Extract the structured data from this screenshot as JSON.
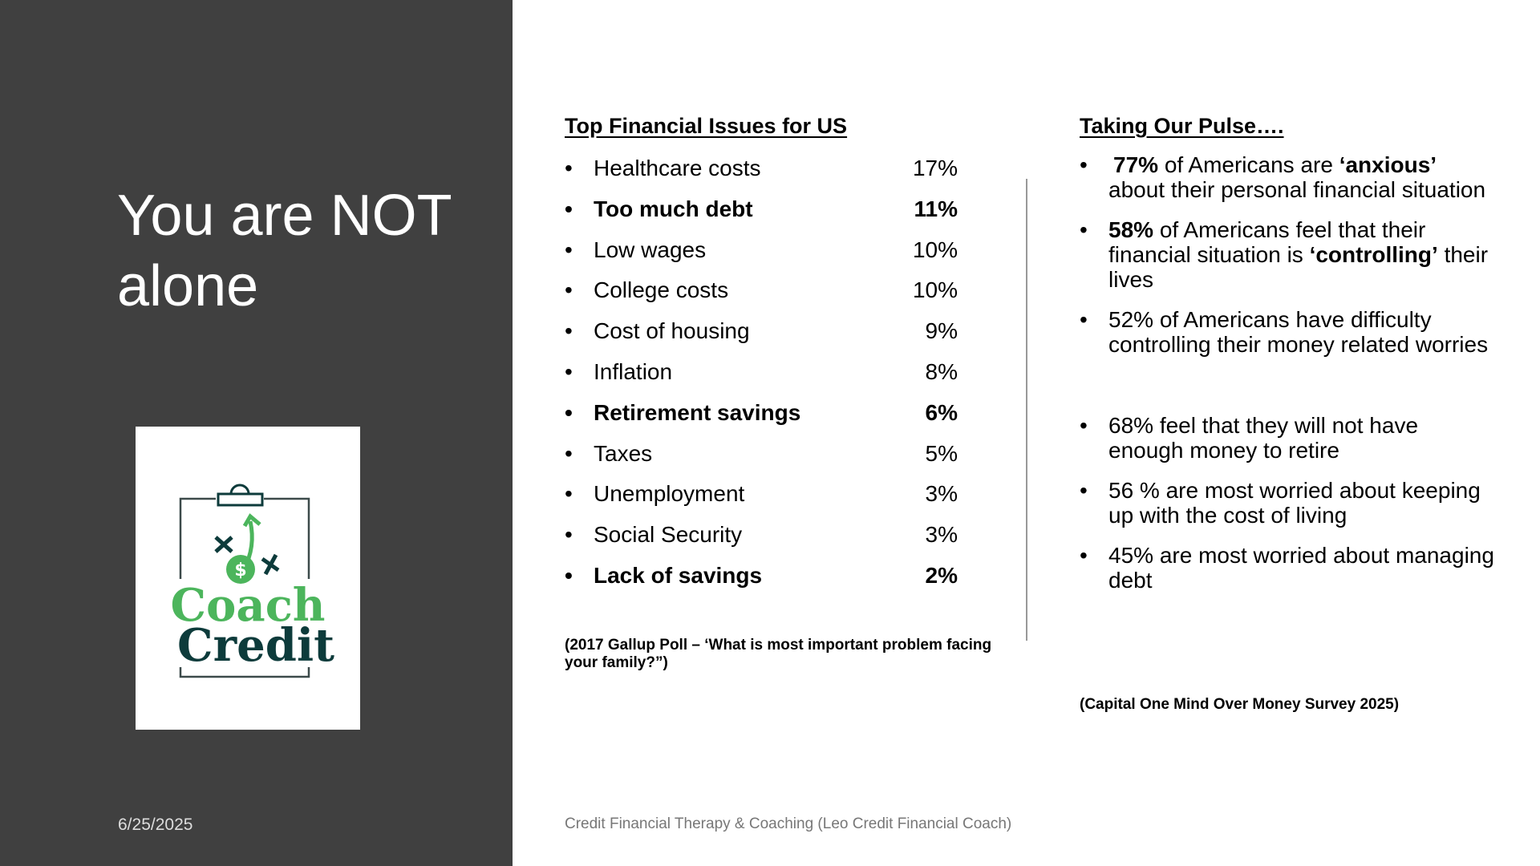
{
  "left_panel": {
    "title": "You are NOT alone",
    "logo": {
      "line1": "Coach",
      "line2": "Credit"
    },
    "date": "6/25/2025"
  },
  "issues": {
    "heading": "Top Financial Issues for US",
    "items": [
      {
        "label": "Healthcare costs",
        "pct": "17%",
        "bold": false
      },
      {
        "label": "Too much debt",
        "pct": "11%",
        "bold": true
      },
      {
        "label": "Low wages",
        "pct": "10%",
        "bold": false
      },
      {
        "label": "College costs",
        "pct": "10%",
        "bold": false
      },
      {
        "label": "Cost of housing",
        "pct": "9%",
        "bold": false
      },
      {
        "label": "Inflation",
        "pct": "8%",
        "bold": false
      },
      {
        "label": "Retirement savings",
        "pct": "6%",
        "bold": true
      },
      {
        "label": "Taxes",
        "pct": "5%",
        "bold": false
      },
      {
        "label": "Unemployment",
        "pct": "3%",
        "bold": false
      },
      {
        "label": "Social Security",
        "pct": "3%",
        "bold": false
      },
      {
        "label": "Lack of savings",
        "pct": "2%",
        "bold": true
      }
    ],
    "source": "(2017 Gallup Poll – ‘What is most important problem facing your family?”)"
  },
  "pulse": {
    "heading": "Taking Our Pulse….",
    "items": [
      {
        "a": "77%",
        "b": " of Americans are ",
        "c": "‘anxious’",
        "d": " about their personal financial situation"
      },
      {
        "a": "58%",
        "b": " of Americans feel that their financial situation is ",
        "c": "‘controlling’",
        "d": " their lives"
      },
      {
        "text": "52%  of Americans have difficulty controlling their money related worries"
      },
      {
        "text": "68% feel that they will not have enough money to retire"
      },
      {
        "text": "56 % are most worried about keeping up with the cost of living"
      },
      {
        "text": "45% are most worried about managing debt"
      }
    ],
    "source": "(Capital One Mind Over Money Survey 2025)"
  },
  "footer": "Credit Financial Therapy & Coaching (Leo Credit Financial Coach)"
}
